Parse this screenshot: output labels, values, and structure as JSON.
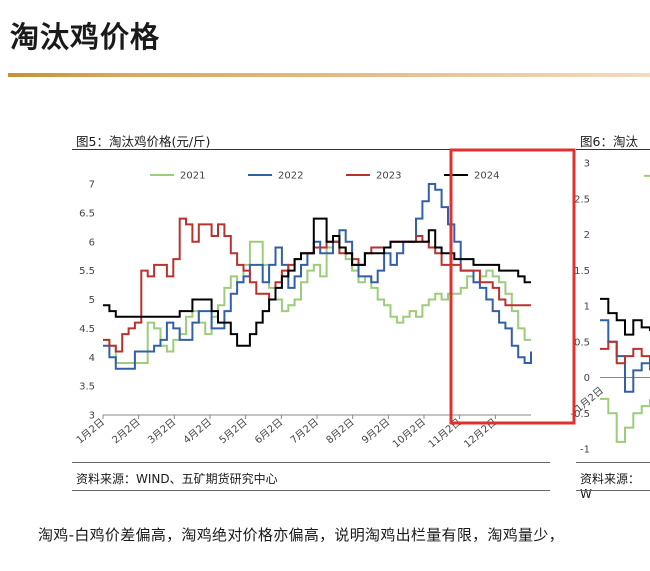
{
  "page": {
    "title": "淘汰鸡价格",
    "body_text": "淘鸡-白鸡价差偏高，淘鸡绝对价格亦偏高，说明淘鸡出栏量有限，淘鸡量少，"
  },
  "figure5": {
    "caption": "图5：淘汰鸡价格(元/斤)",
    "source": "资料来源：WIND、五矿期货研究中心"
  },
  "figure6": {
    "caption": "图6：淘汰",
    "source": "资料来源：W"
  },
  "colors": {
    "2021": "#9ccc7c",
    "2022": "#3260a8",
    "2023": "#b8322e",
    "2024": "#000000",
    "highlight": "#e03030"
  },
  "chart_data": [
    {
      "type": "line",
      "title": "",
      "x_labels": [
        "1月2日",
        "2月2日",
        "3月2日",
        "4月2日",
        "5月2日",
        "6月2日",
        "7月2日",
        "8月2日",
        "9月2日",
        "10月2日",
        "11月2日",
        "12月2日"
      ],
      "ylim": [
        3,
        7
      ],
      "yticks": [
        "3",
        "3.5",
        "4",
        "4.5",
        "5",
        "5.5",
        "6",
        "6.5",
        "7"
      ],
      "legend": [
        "2021",
        "2022",
        "2023",
        "2024"
      ],
      "legend_position": "top",
      "series": [
        {
          "name": "2021",
          "values": [
            4.3,
            4.2,
            3.9,
            3.9,
            3.9,
            3.9,
            3.9,
            4.6,
            4.5,
            4.2,
            4.1,
            4.3,
            4.4,
            4.7,
            4.8,
            4.6,
            4.4,
            4.7,
            4.9,
            5.2,
            5.4,
            5.3,
            5.6,
            6.0,
            6.0,
            5.6,
            5.2,
            5.0,
            4.8,
            4.9,
            5.0,
            5.3,
            5.5,
            5.6,
            5.4,
            5.9,
            6.0,
            5.9,
            5.7,
            5.5,
            5.3,
            5.4,
            5.2,
            5.0,
            4.9,
            4.7,
            4.6,
            4.7,
            4.8,
            4.7,
            4.9,
            5.0,
            5.1,
            5.0,
            5.1,
            5.1,
            5.2,
            5.4,
            5.3,
            5.4,
            5.5,
            5.4,
            5.3,
            5.1,
            4.8,
            4.5,
            4.3,
            4.3
          ]
        },
        {
          "name": "2022",
          "values": [
            4.2,
            4.0,
            3.8,
            3.8,
            3.8,
            4.1,
            4.1,
            4.1,
            4.2,
            4.3,
            4.6,
            4.5,
            4.3,
            4.3,
            4.6,
            4.8,
            4.8,
            4.5,
            4.5,
            4.8,
            5.1,
            5.3,
            5.4,
            5.6,
            5.6,
            5.3,
            5.6,
            5.9,
            5.6,
            5.2,
            5.4,
            5.6,
            5.8,
            6.0,
            5.8,
            5.8,
            6.0,
            6.2,
            6.0,
            5.6,
            5.4,
            5.4,
            5.3,
            5.5,
            5.8,
            5.6,
            5.8,
            6.0,
            6.0,
            6.4,
            6.7,
            7.0,
            6.9,
            6.6,
            6.3,
            6.0,
            5.5,
            5.5,
            5.3,
            5.2,
            5.0,
            4.8,
            4.6,
            4.5,
            4.2,
            4.0,
            3.9,
            4.1
          ]
        },
        {
          "name": "2023",
          "values": [
            4.3,
            4.2,
            4.1,
            4.4,
            4.5,
            4.6,
            5.5,
            5.4,
            5.6,
            5.6,
            5.4,
            5.7,
            6.4,
            6.3,
            6.0,
            6.3,
            6.3,
            6.1,
            6.3,
            6.1,
            5.8,
            5.6,
            5.5,
            5.3,
            5.1,
            5.1,
            5.0,
            5.3,
            5.5,
            5.6,
            5.7,
            5.8,
            5.8,
            5.9,
            5.9,
            6.0,
            6.0,
            5.8,
            5.8,
            5.7,
            5.6,
            5.8,
            5.9,
            5.9,
            5.9,
            6.0,
            6.0,
            6.0,
            6.0,
            6.1,
            6.0,
            5.9,
            5.8,
            5.6,
            5.6,
            5.6,
            5.5,
            5.5,
            5.5,
            5.3,
            5.3,
            5.2,
            5.0,
            4.9,
            4.9,
            4.9,
            4.9,
            4.9
          ]
        },
        {
          "name": "2024",
          "values": [
            4.9,
            4.8,
            4.7,
            4.7,
            4.7,
            4.7,
            4.7,
            4.7,
            4.7,
            4.7,
            4.7,
            4.7,
            4.8,
            4.8,
            5.0,
            5.0,
            5.0,
            4.8,
            4.6,
            4.6,
            4.4,
            4.2,
            4.2,
            4.4,
            4.6,
            4.8,
            5.0,
            5.2,
            5.4,
            5.5,
            5.7,
            5.8,
            5.8,
            6.4,
            6.4,
            6.0,
            6.1,
            5.9,
            5.8,
            5.6,
            5.6,
            5.8,
            5.8,
            5.8,
            5.9,
            6.0,
            6.0,
            6.0,
            6.0,
            6.0,
            6.0,
            6.2,
            5.9,
            5.8,
            5.8,
            5.7,
            5.7,
            5.7,
            5.6,
            5.6,
            5.6,
            5.6,
            5.5,
            5.5,
            5.5,
            5.4,
            5.3,
            5.3
          ]
        }
      ]
    },
    {
      "type": "line",
      "title": "",
      "ylim": [
        -1,
        3
      ],
      "yticks": [
        "-1",
        "-0.5",
        "0",
        "0.5",
        "1",
        "1.5",
        "2",
        "2.5",
        "3"
      ],
      "x_labels": [
        "1月2日"
      ],
      "series": [
        {
          "name": "",
          "values": [
            -0.3,
            -0.5,
            -0.9,
            -0.7,
            -0.5,
            -0.4,
            -0.3
          ]
        },
        {
          "name": "",
          "values": [
            0.8,
            0.5,
            0.3,
            -0.2,
            0.1,
            0.2,
            0.3
          ]
        },
        {
          "name": "",
          "values": [
            0.4,
            0.5,
            0.2,
            0.3,
            0.4,
            0.3,
            0.1
          ]
        },
        {
          "name": "",
          "values": [
            1.1,
            0.9,
            0.8,
            0.6,
            0.8,
            0.7,
            0.65
          ]
        }
      ]
    }
  ]
}
